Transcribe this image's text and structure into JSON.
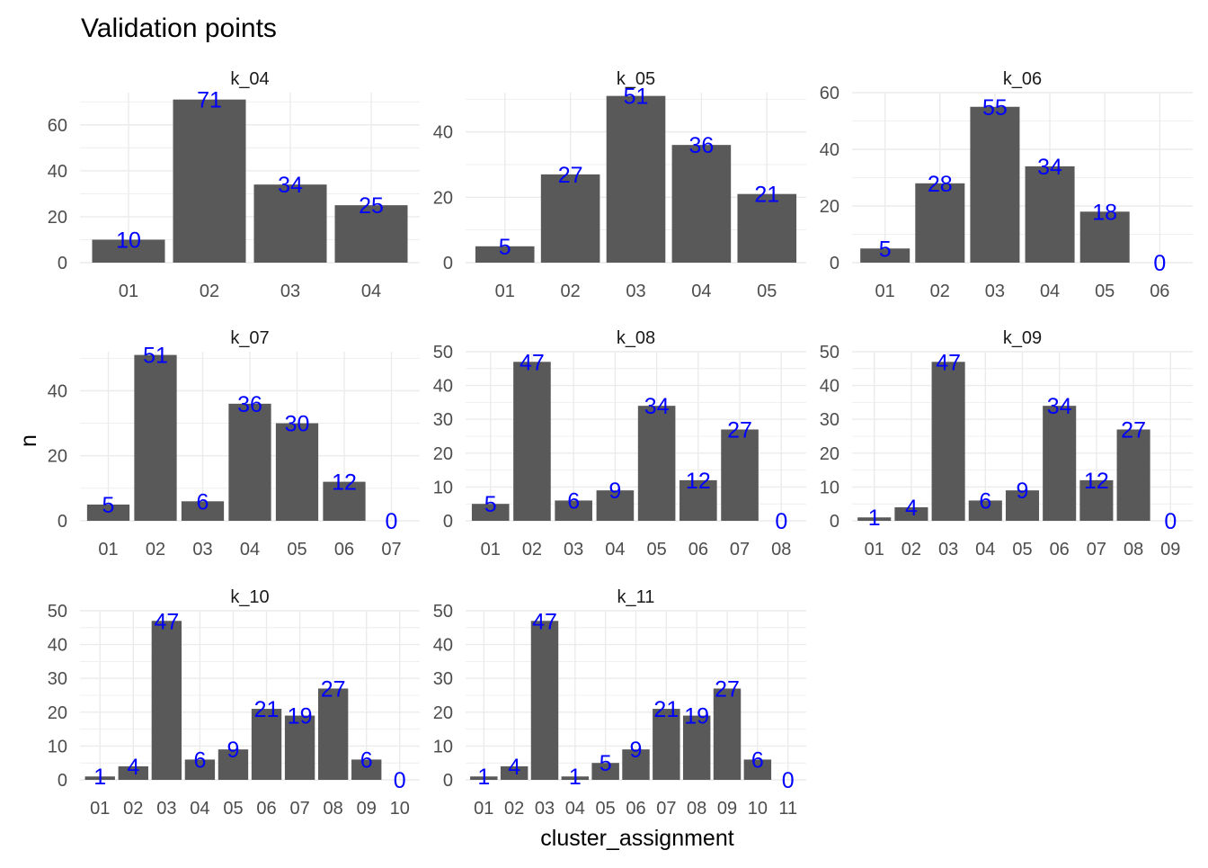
{
  "chart_data": {
    "type": "bar",
    "title": "Validation points",
    "xlabel": "cluster_assignment",
    "ylabel": "n",
    "colors": {
      "bar": "#595959",
      "label": "#0000ff",
      "grid": "#ebebeb"
    },
    "grid": true,
    "panels": [
      {
        "name": "k_04",
        "ylim": [
          0,
          74
        ],
        "yticks": [
          0,
          20,
          40,
          60
        ],
        "categories": [
          "01",
          "02",
          "03",
          "04"
        ],
        "values": [
          10,
          71,
          34,
          25
        ]
      },
      {
        "name": "k_05",
        "ylim": [
          0,
          52
        ],
        "yticks": [
          0,
          20,
          40
        ],
        "categories": [
          "01",
          "02",
          "03",
          "04",
          "05"
        ],
        "values": [
          5,
          27,
          51,
          36,
          21
        ]
      },
      {
        "name": "k_06",
        "ylim": [
          0,
          60
        ],
        "yticks": [
          0,
          20,
          40,
          60
        ],
        "categories": [
          "01",
          "02",
          "03",
          "04",
          "05",
          "06"
        ],
        "values": [
          5,
          28,
          55,
          34,
          18,
          0
        ]
      },
      {
        "name": "k_07",
        "ylim": [
          0,
          52
        ],
        "yticks": [
          0,
          20,
          40
        ],
        "categories": [
          "01",
          "02",
          "03",
          "04",
          "05",
          "06",
          "07"
        ],
        "values": [
          5,
          51,
          6,
          36,
          30,
          12,
          0
        ]
      },
      {
        "name": "k_08",
        "ylim": [
          0,
          50
        ],
        "yticks": [
          0,
          10,
          20,
          30,
          40,
          50
        ],
        "categories": [
          "01",
          "02",
          "03",
          "04",
          "05",
          "06",
          "07",
          "08"
        ],
        "values": [
          5,
          47,
          6,
          9,
          34,
          12,
          27,
          0
        ]
      },
      {
        "name": "k_09",
        "ylim": [
          0,
          50
        ],
        "yticks": [
          0,
          10,
          20,
          30,
          40,
          50
        ],
        "categories": [
          "01",
          "02",
          "03",
          "04",
          "05",
          "06",
          "07",
          "08",
          "09"
        ],
        "values": [
          1,
          4,
          47,
          6,
          9,
          34,
          12,
          27,
          0
        ]
      },
      {
        "name": "k_10",
        "ylim": [
          0,
          50
        ],
        "yticks": [
          0,
          10,
          20,
          30,
          40,
          50
        ],
        "categories": [
          "01",
          "02",
          "03",
          "04",
          "05",
          "06",
          "07",
          "08",
          "09",
          "10"
        ],
        "values": [
          1,
          4,
          47,
          6,
          9,
          21,
          19,
          27,
          6,
          0
        ]
      },
      {
        "name": "k_11",
        "ylim": [
          0,
          50
        ],
        "yticks": [
          0,
          10,
          20,
          30,
          40,
          50
        ],
        "categories": [
          "01",
          "02",
          "03",
          "04",
          "05",
          "06",
          "07",
          "08",
          "09",
          "10",
          "11"
        ],
        "values": [
          1,
          4,
          47,
          1,
          5,
          9,
          21,
          19,
          27,
          6,
          0
        ]
      }
    ]
  }
}
